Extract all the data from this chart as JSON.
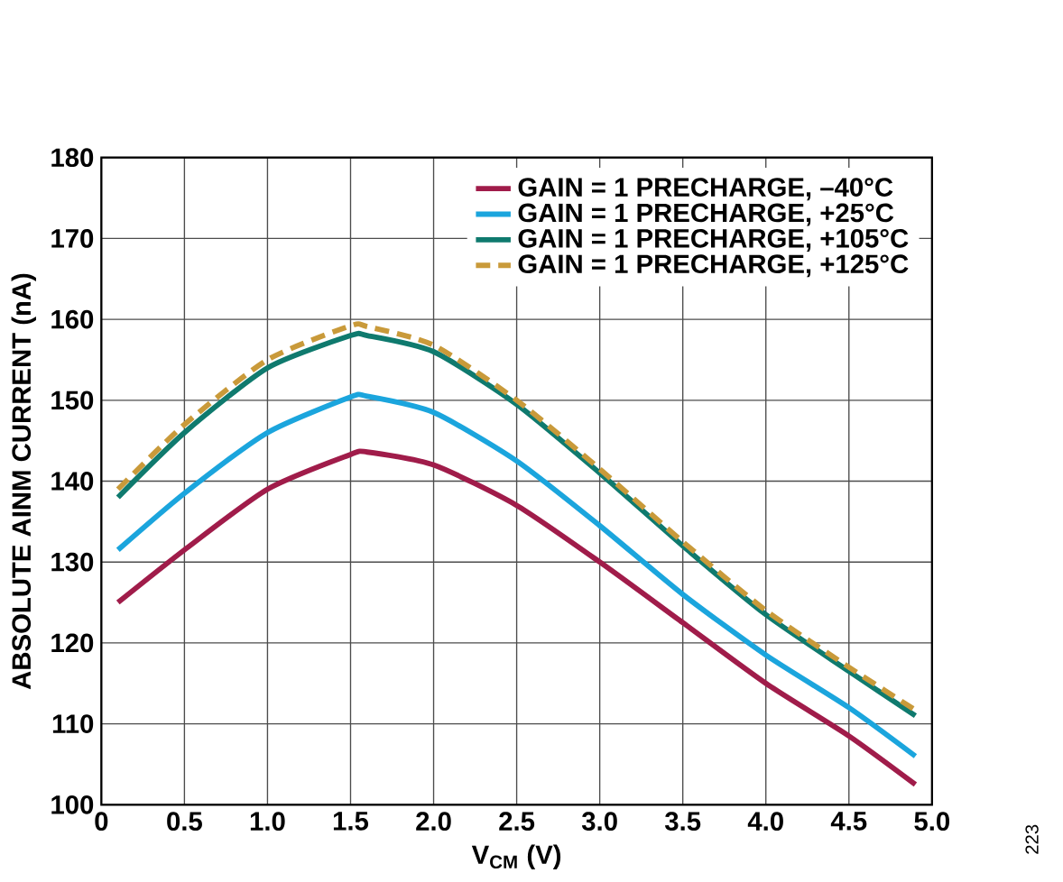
{
  "chart_data": {
    "type": "line",
    "xlabel": "V$_{CM}$ (V)",
    "ylabel": "ABSOLUTE AINM CURRENT (nA)",
    "annotations": [
      "223"
    ],
    "xlim": [
      0,
      5
    ],
    "ylim": [
      100,
      180
    ],
    "xticks": [
      {
        "value": 0,
        "label": "0"
      },
      {
        "value": 0.5,
        "label": "0.5"
      },
      {
        "value": 1,
        "label": "1.0"
      },
      {
        "value": 1.5,
        "label": "1.5"
      },
      {
        "value": 2,
        "label": "2.0"
      },
      {
        "value": 2.5,
        "label": "2.5"
      },
      {
        "value": 3,
        "label": "3.0"
      },
      {
        "value": 3.5,
        "label": "3.5"
      },
      {
        "value": 4,
        "label": "4.0"
      },
      {
        "value": 4.5,
        "label": "4.5"
      },
      {
        "value": 5,
        "label": "5.0"
      }
    ],
    "yticks": [
      100,
      110,
      120,
      130,
      140,
      150,
      160,
      170,
      180
    ],
    "grid": true,
    "legend": "top right",
    "marker": "none",
    "x": [
      0.1,
      0.5,
      1.0,
      1.5,
      1.6,
      2.0,
      2.5,
      3.0,
      3.5,
      4.0,
      4.5,
      4.9
    ],
    "series": [
      {
        "name": "GAIN = 1 PRECHARGE, –40°C",
        "color": "#a01c4a",
        "line_style": "solid",
        "values": [
          125,
          131.5,
          139,
          143.3,
          143.6,
          142,
          137,
          130,
          122.5,
          115,
          108.5,
          102.5
        ]
      },
      {
        "name": "GAIN = 1 PRECHARGE, +25°C",
        "color": "#1ba5dd",
        "line_style": "solid",
        "values": [
          131.5,
          138.5,
          146,
          150.4,
          150.5,
          148.5,
          142.5,
          134.5,
          126,
          118.5,
          112,
          106
        ]
      },
      {
        "name": "GAIN = 1 PRECHARGE, +105°C",
        "color": "#0f7a6e",
        "line_style": "solid",
        "values": [
          138,
          146,
          154,
          158,
          158,
          156,
          149.5,
          141,
          132,
          123.5,
          116.5,
          111
        ]
      },
      {
        "name": "GAIN = 1 PRECHARGE, +125°C",
        "color": "#c99a3a",
        "line_style": "dashed",
        "values": [
          139,
          147,
          155,
          159.2,
          159.1,
          156.8,
          150,
          141.5,
          132.5,
          124,
          117,
          111.7
        ]
      }
    ]
  }
}
